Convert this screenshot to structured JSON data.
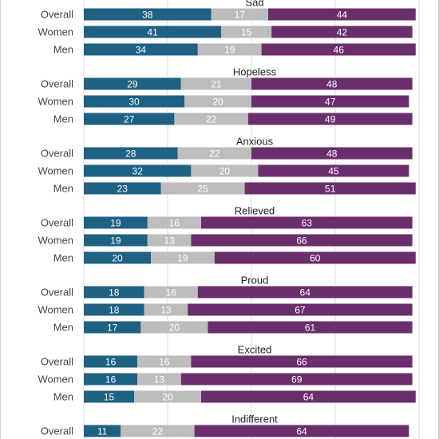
{
  "chart_data": {
    "type": "bar",
    "orientation": "horizontal",
    "stacked": true,
    "row_labels": [
      "Overall",
      "Women",
      "Men"
    ],
    "groups": [
      {
        "title": "Sad",
        "rows": [
          {
            "label": "Overall",
            "values": [
              38,
              17,
              44
            ]
          },
          {
            "label": "Women",
            "values": [
              41,
              15,
              42
            ]
          },
          {
            "label": "Men",
            "values": [
              34,
              19,
              46
            ]
          }
        ]
      },
      {
        "title": "Hopeless",
        "rows": [
          {
            "label": "Overall",
            "values": [
              29,
              21,
              48
            ]
          },
          {
            "label": "Women",
            "values": [
              30,
              20,
              47
            ]
          },
          {
            "label": "Men",
            "values": [
              27,
              22,
              49
            ]
          }
        ]
      },
      {
        "title": "Anxious",
        "rows": [
          {
            "label": "Overall",
            "values": [
              28,
              22,
              48
            ]
          },
          {
            "label": "Women",
            "values": [
              32,
              20,
              45
            ]
          },
          {
            "label": "Men",
            "values": [
              23,
              25,
              51
            ]
          }
        ]
      },
      {
        "title": "Relieved",
        "rows": [
          {
            "label": "Overall",
            "values": [
              19,
              16,
              63
            ]
          },
          {
            "label": "Women",
            "values": [
              19,
              13,
              66
            ]
          },
          {
            "label": "Men",
            "values": [
              20,
              19,
              60
            ]
          }
        ]
      },
      {
        "title": "Proud",
        "rows": [
          {
            "label": "Overall",
            "values": [
              18,
              16,
              64
            ]
          },
          {
            "label": "Women",
            "values": [
              18,
              13,
              67
            ]
          },
          {
            "label": "Men",
            "values": [
              17,
              20,
              61
            ]
          }
        ]
      },
      {
        "title": "Excited",
        "rows": [
          {
            "label": "Overall",
            "values": [
              16,
              16,
              66
            ]
          },
          {
            "label": "Women",
            "values": [
              16,
              13,
              69
            ]
          },
          {
            "label": "Men",
            "values": [
              15,
              20,
              64
            ]
          }
        ]
      },
      {
        "title": "Indifferent",
        "rows": [
          {
            "label": "Overall",
            "values": [
              11,
              22,
              64
            ]
          }
        ]
      }
    ],
    "series_colors": [
      "#1f6182",
      "#bdbdbd",
      "#6a2e6d"
    ],
    "xlim": [
      0,
      100
    ],
    "grid": true,
    "legend": "none"
  }
}
